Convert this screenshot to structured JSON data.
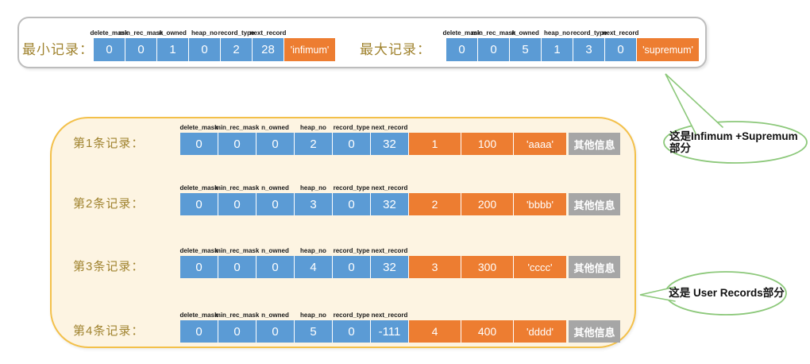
{
  "field_headers": [
    "delete_mask",
    "min_rec_mask",
    "n_owned",
    "heap_no",
    "record_type",
    "next_record"
  ],
  "section_infimum_supremum": {
    "records": [
      {
        "id": "min",
        "label": "最小记录：",
        "field_values": [
          "0",
          "0",
          "1",
          "0",
          "2",
          "28"
        ],
        "record_name": "'infimum'"
      },
      {
        "id": "max",
        "label": "最大记录：",
        "field_values": [
          "0",
          "0",
          "5",
          "1",
          "3",
          "0"
        ],
        "record_name": "'supremum'"
      }
    ]
  },
  "section_user_records": {
    "records": [
      {
        "id": "1",
        "label": "第1条记录：",
        "field_values": [
          "0",
          "0",
          "0",
          "2",
          "0",
          "32"
        ],
        "data_values": [
          "1",
          "100",
          "'aaaa'"
        ],
        "other_info": "其他信息"
      },
      {
        "id": "2",
        "label": "第2条记录：",
        "field_values": [
          "0",
          "0",
          "0",
          "3",
          "0",
          "32"
        ],
        "data_values": [
          "2",
          "200",
          "'bbbb'"
        ],
        "other_info": "其他信息"
      },
      {
        "id": "3",
        "label": "第3条记录：",
        "field_values": [
          "0",
          "0",
          "0",
          "4",
          "0",
          "32"
        ],
        "data_values": [
          "3",
          "300",
          "'cccc'"
        ],
        "other_info": "其他信息"
      },
      {
        "id": "4",
        "label": "第4条记录：",
        "field_values": [
          "0",
          "0",
          "0",
          "5",
          "0",
          "-111"
        ],
        "data_values": [
          "4",
          "400",
          "'dddd'"
        ],
        "other_info": "其他信息"
      }
    ]
  },
  "callouts": [
    {
      "id": "infimum-supremum",
      "lines": [
        "这是Infimum +Supremum",
        "部分"
      ]
    },
    {
      "id": "user-records",
      "lines": [
        "这是 User Records部分"
      ]
    }
  ],
  "colors": {
    "field_cell": "#5b9bd5",
    "data_cell": "#ed7d31",
    "other_cell": "#a6a6a6",
    "cell_text": "#ffffff",
    "label_text": "#a0832f",
    "header_text": "#1a1a1a",
    "callout_green": "#8cc87a",
    "outer_box_border": "#f3c04a",
    "outer_box_bg": "#fdf4e2",
    "top_box_border": "#bdbdbd"
  }
}
